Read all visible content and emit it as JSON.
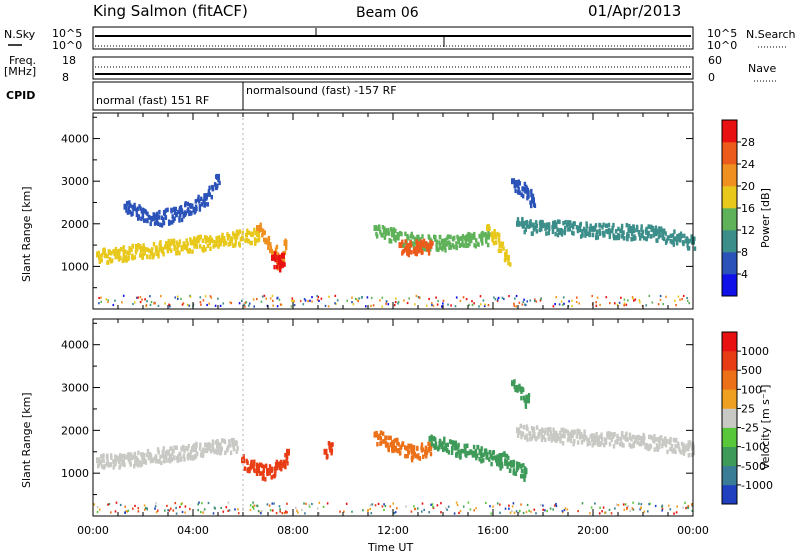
{
  "header": {
    "station": "King Salmon (fitACF)",
    "beam": "Beam 06",
    "date": "01/Apr/2013"
  },
  "status_panel": {
    "nsky_label": "N.Sky",
    "nsky_ticks": [
      "10^5",
      "10^0"
    ],
    "nsearch_label": "N.Search",
    "nsearch_ticks": [
      "10^5",
      "10^0"
    ],
    "freq_label": "Freq.",
    "freq_unit": "[MHz]",
    "freq_ticks": [
      "18",
      "8"
    ],
    "nave_label": "Nave",
    "nave_ticks": [
      "60",
      "0"
    ],
    "cpid_label": "CPID",
    "cpid_segments": [
      {
        "label": "normal (fast) 151 RF",
        "start_hour": 0,
        "end_hour": 6
      },
      {
        "label": "normalsound (fast) -157 RF",
        "start_hour": 6,
        "end_hour": 24
      }
    ]
  },
  "axes": {
    "x_tick_labels": [
      "00:00",
      "04:00",
      "08:00",
      "12:00",
      "16:00",
      "20:00",
      "00:00"
    ],
    "xlabel": "Time UT",
    "ylabel": "Slant Range [km]",
    "y_tick_labels": [
      "1000",
      "2000",
      "3000",
      "4000"
    ]
  },
  "power_colorbar": {
    "label": "Power [dB]",
    "tick_labels": [
      "4",
      "8",
      "12",
      "16",
      "20",
      "24",
      "28"
    ],
    "colors": [
      "#1010e8",
      "#2a52b8",
      "#3c8e8a",
      "#5fb25a",
      "#e8c81a",
      "#f09020",
      "#ec5a1c",
      "#e81010"
    ]
  },
  "velocity_colorbar": {
    "label": "Velocity [m s⁻¹]",
    "tick_labels": [
      "1000",
      "500",
      "100",
      "25",
      "-25",
      "-100",
      "-500",
      "-1000"
    ],
    "colors": [
      "#2040c0",
      "#3a7c96",
      "#3e9a58",
      "#58c83a",
      "#c8c8c4",
      "#f0a020",
      "#ec7018",
      "#e83c14",
      "#e81010"
    ]
  },
  "chart_data": [
    {
      "type": "heatmap",
      "panel": "power",
      "ylabel": "Slant Range [km]",
      "xlabel": "",
      "x_unit": "hour UT",
      "xlim": [
        0,
        24
      ],
      "ylim": [
        0,
        4600
      ],
      "colorbar": "Power [dB]",
      "series": [
        {
          "x": [
            0.2,
            1.0,
            2.0,
            3.0,
            4.0,
            5.0,
            5.7,
            6.6
          ],
          "y": [
            1280,
            1330,
            1400,
            1490,
            1560,
            1640,
            1700,
            1760
          ],
          "value": 16
        },
        {
          "x": [
            6.6,
            7.0,
            7.3,
            7.4,
            7.55,
            7.7
          ],
          "y": [
            1900,
            1580,
            1300,
            1120,
            1200,
            1550
          ],
          "value": 20
        },
        {
          "x": [
            7.2,
            7.45,
            7.6
          ],
          "y": [
            1200,
            1100,
            1250
          ],
          "value": 28
        },
        {
          "x": [
            11.3,
            12.0,
            13.0,
            14.0,
            15.0,
            15.8
          ],
          "y": [
            1900,
            1750,
            1600,
            1580,
            1650,
            1700
          ],
          "value": 12
        },
        {
          "x": [
            12.3,
            12.6,
            13.0,
            13.5
          ],
          "y": [
            1500,
            1450,
            1520,
            1480
          ],
          "value": 24
        },
        {
          "x": [
            15.8,
            16.0,
            16.3,
            16.6
          ],
          "y": [
            1900,
            1750,
            1500,
            1200
          ],
          "value": 16
        },
        {
          "x": [
            17.0,
            18.5,
            20.0,
            21.5,
            22.5,
            24.0
          ],
          "y": [
            2000,
            1950,
            1880,
            1850,
            1820,
            1580
          ],
          "value": 10
        },
        {
          "x": [
            1.3,
            2.5,
            3.5,
            4.5,
            5.0
          ],
          "y": [
            2400,
            2150,
            2300,
            2650,
            3100
          ],
          "value": 6
        },
        {
          "x": [
            16.8,
            17.3,
            17.6
          ],
          "y": [
            3000,
            2800,
            2550
          ],
          "value": 6
        }
      ]
    },
    {
      "type": "heatmap",
      "panel": "velocity",
      "ylabel": "Slant Range [km]",
      "xlabel": "Time UT",
      "x_unit": "hour UT",
      "xlim": [
        0,
        24
      ],
      "ylim": [
        0,
        4600
      ],
      "colorbar": "Velocity [m s⁻¹]",
      "series": [
        {
          "x": [
            0.2,
            1.0,
            2.0,
            3.0,
            4.0,
            5.0,
            5.7
          ],
          "y": [
            1300,
            1340,
            1400,
            1480,
            1560,
            1650,
            1700
          ],
          "value": 0
        },
        {
          "x": [
            6.0,
            6.6,
            7.0,
            7.4,
            7.8
          ],
          "y": [
            1300,
            1100,
            1050,
            1200,
            1500
          ],
          "value": -500
        },
        {
          "x": [
            9.3,
            9.5
          ],
          "y": [
            1500,
            1650
          ],
          "value": -500
        },
        {
          "x": [
            11.3,
            12.0,
            12.8,
            13.5
          ],
          "y": [
            1900,
            1700,
            1500,
            1650
          ],
          "value": -300
        },
        {
          "x": [
            13.5,
            14.5,
            15.5,
            16.3
          ],
          "y": [
            1800,
            1600,
            1500,
            1300
          ],
          "value": 80
        },
        {
          "x": [
            16.3,
            16.8,
            17.3
          ],
          "y": [
            1400,
            1200,
            1050
          ],
          "value": 80
        },
        {
          "x": [
            17.0,
            18.5,
            20.0,
            22.0,
            24.0
          ],
          "y": [
            2000,
            1920,
            1860,
            1800,
            1600
          ],
          "value": 0
        },
        {
          "x": [
            16.8,
            17.4
          ],
          "y": [
            3100,
            2700
          ],
          "value": 200
        }
      ]
    }
  ]
}
